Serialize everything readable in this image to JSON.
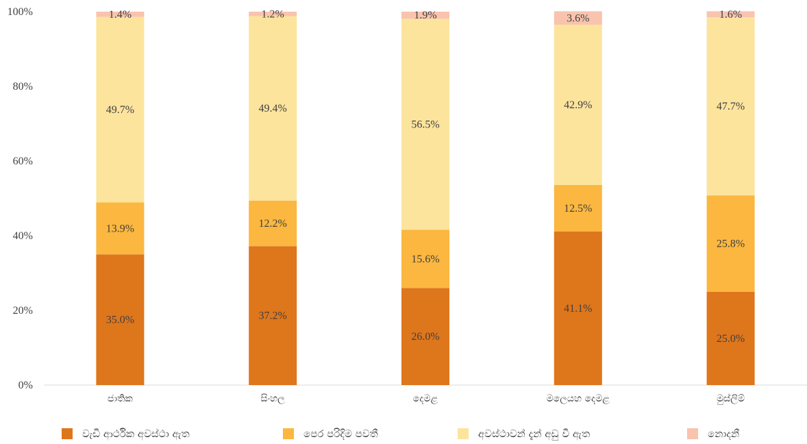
{
  "chart_data": {
    "type": "bar",
    "stacked": true,
    "categories": [
      "ජාතික",
      "සිංහල",
      "දෙමළ",
      "මලෙයහ දෙමළ",
      "මුස්ලිම්"
    ],
    "series": [
      {
        "name": "වැඩි ආර්ථික අවස්ථා ඇත",
        "color": "#de761c",
        "values": [
          35.0,
          37.2,
          26.0,
          41.1,
          25.0
        ],
        "labels": [
          "35.0%",
          "37.2%",
          "26.0%",
          "41.1%",
          "25.0%"
        ]
      },
      {
        "name": "පෙර පරිදිම පවතී",
        "color": "#fbb73f",
        "values": [
          13.9,
          12.2,
          15.6,
          12.5,
          25.8
        ],
        "labels": [
          "13.9%",
          "12.2%",
          "15.6%",
          "12.5%",
          "25.8%"
        ]
      },
      {
        "name": "අවස්ථාවන් දැන් අඩු වී ඇත",
        "color": "#fce49d",
        "values": [
          49.7,
          49.4,
          56.5,
          42.9,
          47.7
        ],
        "labels": [
          "49.7%",
          "49.4%",
          "56.5%",
          "42.9%",
          "47.7%"
        ]
      },
      {
        "name": "නොදනී",
        "color": "#f9c3ae",
        "values": [
          1.4,
          1.2,
          1.9,
          3.6,
          1.6
        ],
        "labels": [
          "1.4%",
          "1.2%",
          "1.9%",
          "3.6%",
          "1.6%"
        ]
      }
    ],
    "y_ticks": [
      "0%",
      "20%",
      "40%",
      "60%",
      "80%",
      "100%"
    ],
    "ylim": [
      0,
      100
    ],
    "grid": false,
    "legend_position": "bottom"
  }
}
